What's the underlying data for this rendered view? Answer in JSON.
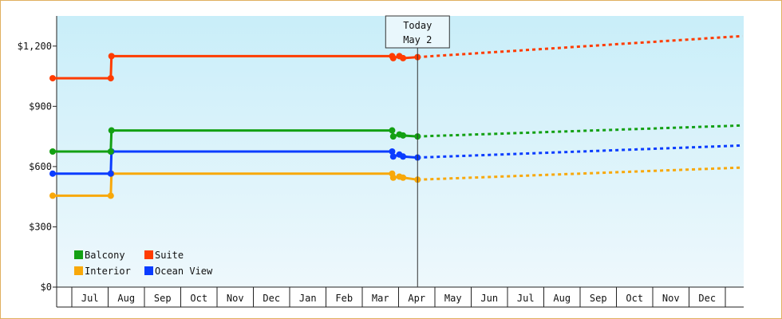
{
  "chart_data": {
    "type": "line",
    "title": "",
    "xlabel": "",
    "ylabel": "",
    "ylim": [
      0,
      1350
    ],
    "y_ticks": [
      {
        "value": 0,
        "label": "$0"
      },
      {
        "value": 300,
        "label": "$300"
      },
      {
        "value": 600,
        "label": "$600"
      },
      {
        "value": 900,
        "label": "$900"
      },
      {
        "value": 1200,
        "label": "$1,200"
      }
    ],
    "x_ticks": [
      "Jul",
      "Aug",
      "Sep",
      "Oct",
      "Nov",
      "Dec",
      "Jan",
      "Feb",
      "Mar",
      "Apr",
      "May",
      "Jun",
      "Jul",
      "Aug",
      "Sep",
      "Oct",
      "Nov",
      "Dec"
    ],
    "x_range": [
      "Jun",
      "Dec"
    ],
    "grid": "vertical month separators",
    "background_gradient": [
      "#c9eef9",
      "#eef8fc"
    ],
    "today": {
      "line1": "Today",
      "line2": "May 2",
      "x": 10.05
    },
    "legend": {
      "placement": "bottom-left"
    },
    "series": [
      {
        "name": "Suite",
        "color": "#ff3c00",
        "history": [
          [
            0,
            1040
          ],
          [
            1.6,
            1040
          ],
          [
            1.62,
            1150
          ],
          [
            9.35,
            1150
          ],
          [
            9.38,
            1140
          ],
          [
            9.55,
            1150
          ],
          [
            9.65,
            1140
          ],
          [
            10.05,
            1145
          ]
        ],
        "markers": [
          [
            0,
            1040
          ],
          [
            1.6,
            1040
          ],
          [
            1.62,
            1150
          ],
          [
            9.35,
            1150
          ],
          [
            9.38,
            1140
          ],
          [
            9.55,
            1150
          ],
          [
            9.65,
            1140
          ],
          [
            10.05,
            1145
          ]
        ],
        "forecast": [
          [
            10.05,
            1145
          ],
          [
            19,
            1250
          ]
        ]
      },
      {
        "name": "Balcony",
        "color": "#13a013",
        "history": [
          [
            0,
            675
          ],
          [
            1.6,
            675
          ],
          [
            1.62,
            780
          ],
          [
            9.35,
            780
          ],
          [
            9.38,
            750
          ],
          [
            9.55,
            760
          ],
          [
            9.65,
            755
          ],
          [
            10.05,
            750
          ]
        ],
        "markers": [
          [
            0,
            675
          ],
          [
            1.6,
            675
          ],
          [
            1.62,
            780
          ],
          [
            9.35,
            780
          ],
          [
            9.38,
            750
          ],
          [
            9.55,
            760
          ],
          [
            9.65,
            755
          ],
          [
            10.05,
            750
          ]
        ],
        "forecast": [
          [
            10.05,
            750
          ],
          [
            19,
            805
          ]
        ]
      },
      {
        "name": "Ocean View",
        "color": "#0a3cff",
        "history": [
          [
            0,
            565
          ],
          [
            1.6,
            565
          ],
          [
            1.62,
            675
          ],
          [
            9.35,
            675
          ],
          [
            9.38,
            650
          ],
          [
            9.55,
            660
          ],
          [
            9.65,
            650
          ],
          [
            10.05,
            645
          ]
        ],
        "markers": [
          [
            0,
            565
          ],
          [
            1.6,
            565
          ],
          [
            1.62,
            675
          ],
          [
            9.35,
            675
          ],
          [
            9.38,
            650
          ],
          [
            9.55,
            660
          ],
          [
            9.65,
            650
          ],
          [
            10.05,
            645
          ]
        ],
        "forecast": [
          [
            10.05,
            645
          ],
          [
            19,
            705
          ]
        ]
      },
      {
        "name": "Interior",
        "color": "#f8a80a",
        "history": [
          [
            0,
            455
          ],
          [
            1.6,
            455
          ],
          [
            1.62,
            565
          ],
          [
            9.35,
            565
          ],
          [
            9.38,
            545
          ],
          [
            9.55,
            550
          ],
          [
            9.65,
            545
          ],
          [
            10.05,
            535
          ]
        ],
        "markers": [
          [
            0,
            455
          ],
          [
            1.6,
            455
          ],
          [
            1.62,
            565
          ],
          [
            9.35,
            565
          ],
          [
            9.38,
            545
          ],
          [
            9.55,
            550
          ],
          [
            9.65,
            545
          ],
          [
            10.05,
            535
          ]
        ],
        "forecast": [
          [
            10.05,
            535
          ],
          [
            19,
            595
          ]
        ]
      }
    ],
    "legend_entries": [
      {
        "name": "Balcony",
        "color": "#13a013"
      },
      {
        "name": "Suite",
        "color": "#ff3c00"
      },
      {
        "name": "Interior",
        "color": "#f8a80a"
      },
      {
        "name": "Ocean View",
        "color": "#0a3cff"
      }
    ]
  }
}
